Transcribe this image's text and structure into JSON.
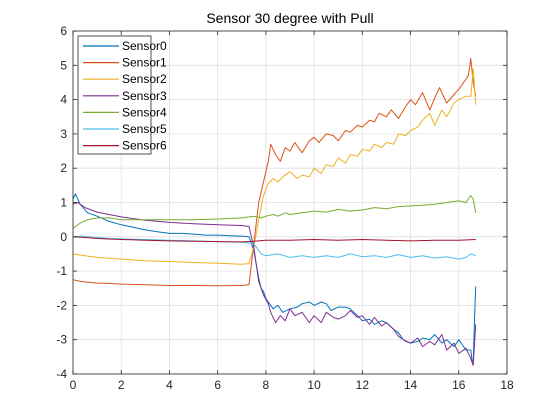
{
  "chart_data": {
    "type": "line",
    "title": "Sensor 30 degree with Pull",
    "xlabel": "",
    "ylabel": "",
    "xlim": [
      0,
      18
    ],
    "ylim": [
      -4,
      6
    ],
    "xticks": [
      "0",
      "2",
      "4",
      "6",
      "8",
      "10",
      "12",
      "14",
      "16",
      "18"
    ],
    "yticks": [
      "-4",
      "-3",
      "-2",
      "-1",
      "0",
      "1",
      "2",
      "3",
      "4",
      "5",
      "6"
    ],
    "grid": true,
    "legend_position": "top-left",
    "series": [
      {
        "name": "Sensor0",
        "color": "#0072BD",
        "x": [
          0,
          0.1,
          0.3,
          0.6,
          1,
          1.5,
          2,
          2.5,
          3,
          3.5,
          4,
          4.5,
          5,
          5.5,
          6,
          6.5,
          7,
          7.3,
          7.5,
          7.7,
          7.8,
          7.9,
          8,
          8.1,
          8.3,
          8.5,
          8.7,
          9,
          9.3,
          9.5,
          9.8,
          10,
          10.3,
          10.5,
          10.7,
          11,
          11.3,
          11.5,
          11.8,
          12,
          12.3,
          12.5,
          12.8,
          13,
          13.3,
          13.5,
          13.7,
          14,
          14.3,
          14.5,
          14.8,
          15,
          15.3,
          15.5,
          15.8,
          16,
          16.3,
          16.5,
          16.55,
          16.6,
          16.65,
          16.7
        ],
        "values": [
          1.1,
          1.25,
          0.95,
          0.7,
          0.6,
          0.45,
          0.35,
          0.28,
          0.2,
          0.15,
          0.1,
          0.1,
          0.08,
          0.05,
          0.05,
          0.03,
          0.02,
          0.0,
          -0.4,
          -1.2,
          -1.5,
          -1.6,
          -1.8,
          -1.9,
          -2.1,
          -2.0,
          -2.2,
          -2.1,
          -2.05,
          -1.95,
          -1.9,
          -2.0,
          -1.9,
          -1.95,
          -2.15,
          -2.05,
          -2.05,
          -2.1,
          -2.3,
          -2.45,
          -2.4,
          -2.55,
          -2.45,
          -2.5,
          -2.7,
          -2.8,
          -3.0,
          -3.1,
          -3.05,
          -2.95,
          -3.0,
          -2.85,
          -3.1,
          -3.0,
          -3.2,
          -3.0,
          -3.3,
          -3.3,
          -3.6,
          -3.65,
          -2.5,
          -1.45
        ]
      },
      {
        "name": "Sensor1",
        "color": "#D95319",
        "x": [
          0,
          0.3,
          0.6,
          1,
          1.5,
          2,
          3,
          4,
          5,
          6,
          7,
          7.3,
          7.5,
          7.7,
          7.9,
          8.1,
          8.2,
          8.4,
          8.6,
          8.8,
          9,
          9.2,
          9.5,
          9.8,
          10,
          10.2,
          10.5,
          10.8,
          11,
          11.3,
          11.5,
          11.8,
          12,
          12.3,
          12.5,
          12.7,
          13,
          13.2,
          13.5,
          13.8,
          14,
          14.2,
          14.5,
          14.8,
          15,
          15.2,
          15.5,
          15.8,
          16,
          16.2,
          16.4,
          16.5,
          16.6,
          16.7
        ],
        "values": [
          -1.25,
          -1.3,
          -1.32,
          -1.35,
          -1.36,
          -1.38,
          -1.4,
          -1.42,
          -1.42,
          -1.43,
          -1.42,
          -1.4,
          -0.2,
          1.0,
          1.6,
          2.2,
          2.7,
          2.4,
          2.2,
          2.6,
          2.5,
          2.75,
          2.45,
          2.8,
          2.9,
          2.75,
          3.0,
          2.95,
          2.8,
          3.1,
          3.05,
          3.25,
          3.2,
          3.4,
          3.35,
          3.6,
          3.5,
          3.7,
          3.45,
          3.8,
          4.0,
          3.85,
          4.2,
          3.7,
          4.05,
          4.35,
          3.9,
          4.15,
          4.3,
          4.5,
          4.7,
          5.2,
          4.5,
          4.1
        ]
      },
      {
        "name": "Sensor2",
        "color": "#EDB120",
        "x": [
          0,
          0.5,
          1,
          2,
          3,
          4,
          5,
          6,
          7,
          7.3,
          7.5,
          7.7,
          7.9,
          8.1,
          8.3,
          8.5,
          8.7,
          9,
          9.3,
          9.5,
          9.8,
          10,
          10.3,
          10.5,
          10.8,
          11,
          11.3,
          11.5,
          11.8,
          12,
          12.3,
          12.5,
          12.8,
          13,
          13.3,
          13.5,
          13.8,
          14,
          14.3,
          14.5,
          14.8,
          15,
          15.3,
          15.5,
          15.8,
          16,
          16.3,
          16.5,
          16.6,
          16.7
        ],
        "values": [
          -0.5,
          -0.55,
          -0.6,
          -0.65,
          -0.7,
          -0.72,
          -0.75,
          -0.77,
          -0.8,
          -0.78,
          -0.3,
          0.5,
          1.2,
          1.55,
          1.7,
          1.6,
          1.75,
          1.9,
          1.7,
          1.8,
          1.75,
          2.0,
          1.85,
          2.1,
          2.05,
          2.3,
          2.15,
          2.4,
          2.35,
          2.55,
          2.5,
          2.7,
          2.6,
          2.75,
          2.7,
          3.0,
          2.95,
          3.1,
          3.2,
          3.4,
          3.6,
          3.25,
          3.7,
          3.5,
          3.9,
          4.0,
          4.1,
          4.1,
          4.9,
          3.85
        ]
      },
      {
        "name": "Sensor3",
        "color": "#7E2F8E",
        "x": [
          0,
          0.2,
          0.5,
          1,
          1.5,
          2,
          3,
          4,
          5,
          6,
          7,
          7.3,
          7.5,
          7.7,
          7.9,
          8.1,
          8.2,
          8.4,
          8.6,
          8.8,
          9,
          9.2,
          9.5,
          9.8,
          10,
          10.3,
          10.5,
          10.8,
          11,
          11.3,
          11.5,
          11.8,
          12,
          12.3,
          12.5,
          12.8,
          13,
          13.3,
          13.5,
          13.8,
          14,
          14.3,
          14.5,
          14.8,
          15,
          15.3,
          15.5,
          15.8,
          16,
          16.3,
          16.5,
          16.6,
          16.7
        ],
        "values": [
          0.95,
          1.0,
          0.85,
          0.72,
          0.65,
          0.58,
          0.48,
          0.42,
          0.38,
          0.35,
          0.33,
          0.3,
          -0.3,
          -1.3,
          -1.7,
          -1.95,
          -2.2,
          -2.5,
          -2.3,
          -2.45,
          -2.1,
          -2.3,
          -2.2,
          -2.5,
          -2.3,
          -2.5,
          -2.2,
          -2.35,
          -2.4,
          -2.3,
          -2.15,
          -2.35,
          -2.3,
          -2.55,
          -2.35,
          -2.6,
          -2.5,
          -2.7,
          -2.9,
          -3.05,
          -3.1,
          -2.95,
          -3.2,
          -3.05,
          -3.15,
          -2.85,
          -3.3,
          -3.1,
          -3.4,
          -3.25,
          -3.55,
          -3.75,
          -2.55
        ]
      },
      {
        "name": "Sensor4",
        "color": "#77AC30",
        "x": [
          0,
          0.3,
          0.6,
          1,
          1.5,
          2,
          3,
          4,
          5,
          6,
          7,
          7.5,
          7.8,
          8,
          8.3,
          8.5,
          8.8,
          9,
          9.5,
          10,
          10.5,
          11,
          11.5,
          12,
          12.5,
          13,
          13.5,
          14,
          14.5,
          15,
          15.5,
          16,
          16.3,
          16.5,
          16.6,
          16.7
        ],
        "values": [
          0.25,
          0.4,
          0.5,
          0.55,
          0.55,
          0.5,
          0.5,
          0.5,
          0.5,
          0.52,
          0.55,
          0.6,
          0.55,
          0.6,
          0.65,
          0.6,
          0.7,
          0.65,
          0.7,
          0.75,
          0.72,
          0.8,
          0.75,
          0.78,
          0.85,
          0.82,
          0.88,
          0.9,
          0.92,
          0.95,
          1.0,
          1.05,
          1.0,
          1.2,
          1.1,
          0.7
        ]
      },
      {
        "name": "Sensor5",
        "color": "#4DBEEE",
        "x": [
          0,
          0.3,
          0.6,
          1,
          1.5,
          2,
          3,
          4,
          5,
          6,
          7,
          7.5,
          7.8,
          8,
          8.5,
          9,
          9.5,
          10,
          10.5,
          11,
          11.5,
          12,
          12.5,
          13,
          13.5,
          14,
          14.5,
          15,
          15.5,
          16,
          16.3,
          16.5,
          16.7
        ],
        "values": [
          0.0,
          0.02,
          0.0,
          -0.02,
          -0.05,
          -0.06,
          -0.08,
          -0.1,
          -0.12,
          -0.14,
          -0.16,
          -0.2,
          -0.5,
          -0.55,
          -0.5,
          -0.6,
          -0.55,
          -0.6,
          -0.55,
          -0.6,
          -0.5,
          -0.58,
          -0.55,
          -0.6,
          -0.52,
          -0.6,
          -0.55,
          -0.62,
          -0.58,
          -0.65,
          -0.6,
          -0.5,
          -0.55
        ]
      },
      {
        "name": "Sensor6",
        "color": "#A2142F",
        "x": [
          0,
          0.5,
          1,
          2,
          3,
          4,
          5,
          6,
          7,
          7.5,
          8,
          9,
          10,
          11,
          12,
          13,
          14,
          15,
          16,
          16.7
        ],
        "values": [
          0.0,
          -0.02,
          -0.05,
          -0.08,
          -0.1,
          -0.12,
          -0.13,
          -0.14,
          -0.15,
          -0.13,
          -0.1,
          -0.1,
          -0.08,
          -0.1,
          -0.08,
          -0.1,
          -0.12,
          -0.1,
          -0.1,
          -0.08
        ]
      }
    ]
  }
}
